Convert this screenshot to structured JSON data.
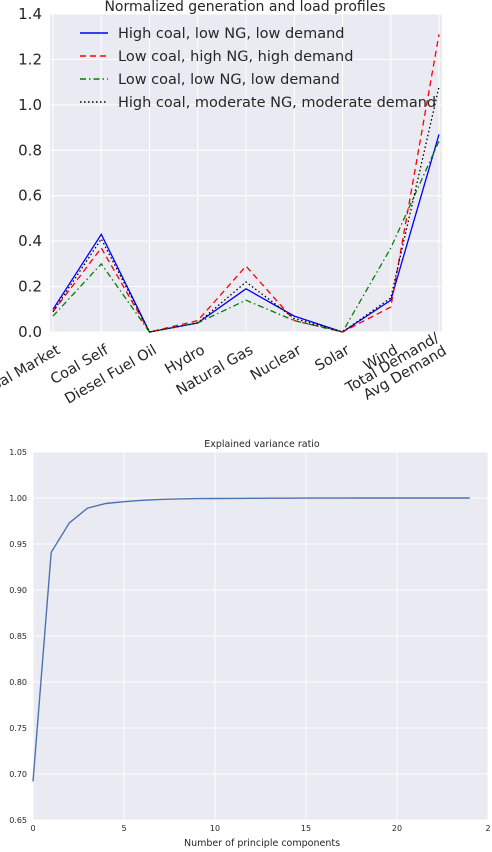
{
  "chart_data": [
    {
      "type": "line",
      "title": "Normalized generation and load profiles",
      "categories": [
        "Coal Market",
        "Coal Self",
        "Diesel Fuel Oil",
        "Hydro",
        "Natural Gas",
        "Nuclear",
        "Solar",
        "Wind",
        "Total Demand/\nAvg Demand"
      ],
      "series": [
        {
          "name": "High coal, low NG, low demand",
          "values": [
            0.1,
            0.43,
            0.0,
            0.04,
            0.19,
            0.07,
            0.0,
            0.14,
            0.87
          ],
          "color": "#0000ff",
          "dash": "solid"
        },
        {
          "name": "Low coal, high NG, high demand",
          "values": [
            0.09,
            0.37,
            0.0,
            0.05,
            0.29,
            0.05,
            0.0,
            0.11,
            1.31
          ],
          "color": "#ff0000",
          "dash": "dashed"
        },
        {
          "name": "Low coal, low NG, low demand",
          "values": [
            0.07,
            0.3,
            0.0,
            0.04,
            0.14,
            0.05,
            0.0,
            0.37,
            0.84
          ],
          "color": "#008000",
          "dash": "dashdot"
        },
        {
          "name": "High coal, moderate NG, moderate demand",
          "values": [
            0.09,
            0.41,
            0.0,
            0.04,
            0.22,
            0.06,
            0.0,
            0.15,
            1.08
          ],
          "color": "#000000",
          "dash": "dotted"
        }
      ],
      "ylim": [
        0.0,
        1.4
      ],
      "yticks": [
        "0.0",
        "0.2",
        "0.4",
        "0.6",
        "0.8",
        "1.0",
        "1.2",
        "1.4"
      ],
      "grid": true,
      "legend": "top-left"
    },
    {
      "type": "line",
      "title": "Explained variance ratio",
      "xlabel": "Number of principle components",
      "x": [
        0,
        1,
        2,
        3,
        4,
        5,
        6,
        7,
        8,
        9,
        10,
        11,
        12,
        13,
        14,
        15,
        16,
        17,
        18,
        19,
        20,
        21,
        22,
        23,
        24
      ],
      "series": [
        {
          "values": [
            0.692,
            0.941,
            0.973,
            0.989,
            0.994,
            0.996,
            0.9975,
            0.9985,
            0.999,
            0.9993,
            0.9995,
            0.9996,
            0.9997,
            0.9998,
            0.9998,
            0.9999,
            0.9999,
            0.9999,
            1.0,
            1.0,
            1.0,
            1.0,
            1.0,
            1.0,
            1.0
          ],
          "color": "#4c72b0"
        }
      ],
      "xlim": [
        0,
        25
      ],
      "xticks": [
        "0",
        "5",
        "10",
        "15",
        "20",
        "2"
      ],
      "ylim": [
        0.65,
        1.05
      ],
      "yticks": [
        "0.65",
        "0.70",
        "0.75",
        "0.80",
        "0.85",
        "0.90",
        "0.95",
        "1.00",
        "1.05"
      ],
      "grid": true
    }
  ]
}
